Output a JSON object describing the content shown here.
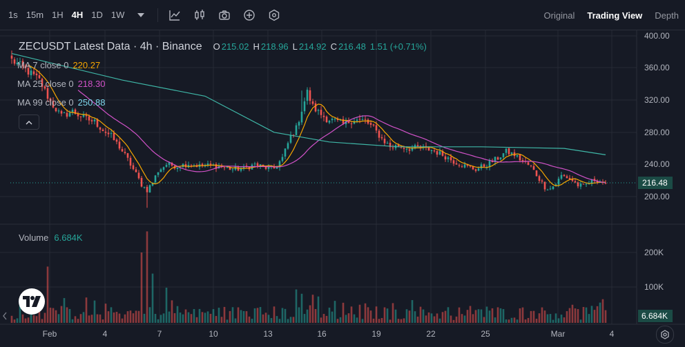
{
  "toolbar": {
    "timeframes": [
      {
        "label": "1s",
        "active": false
      },
      {
        "label": "15m",
        "active": false
      },
      {
        "label": "1H",
        "active": false
      },
      {
        "label": "4H",
        "active": true
      },
      {
        "label": "1D",
        "active": false
      },
      {
        "label": "1W",
        "active": false
      }
    ],
    "icons": [
      "chevron-down-icon",
      "indicator-chart-icon",
      "candle-style-icon",
      "camera-icon",
      "plus-circle-icon",
      "settings-hex-icon"
    ],
    "view_modes": [
      {
        "label": "Original",
        "active": false
      },
      {
        "label": "Trading View",
        "active": true
      },
      {
        "label": "Depth",
        "active": false
      }
    ]
  },
  "legend": {
    "title": "ZECUSDT Latest Data · 4h · Binance",
    "open_key": "O",
    "open": "215.02",
    "high_key": "H",
    "high": "218.96",
    "low_key": "L",
    "low": "214.92",
    "close_key": "C",
    "close": "216.48",
    "change": "1.51 (+0.71%)",
    "ma7_label": "MA 7 close 0",
    "ma7_value": "220.27",
    "ma25_label": "MA 25 close 0",
    "ma25_value": "218.30",
    "ma99_label": "MA 99 close 0",
    "ma99_value": "250.88"
  },
  "volume": {
    "label": "Volume",
    "value": "6.684K"
  },
  "price_axis": {
    "ticks": [
      "400.00",
      "360.00",
      "320.00",
      "280.00",
      "240.00",
      "200.00"
    ],
    "current": "216.48"
  },
  "volume_axis": {
    "ticks": [
      "200K",
      "100K"
    ],
    "current": "6.684K"
  },
  "time_axis": [
    "Feb",
    "4",
    "7",
    "10",
    "13",
    "16",
    "19",
    "22",
    "25",
    "Mar",
    "4"
  ],
  "colors": {
    "up": "#26a69a",
    "down": "#ef5350",
    "ma7": "#f7a600",
    "ma25": "#d152c8",
    "ma99": "#3fb8a8",
    "bg": "#161a25",
    "grid": "#262a35"
  },
  "chart_data": {
    "type": "candlestick",
    "symbol": "ZECUSDT",
    "interval": "4h",
    "ylim": [
      170,
      400
    ],
    "volume_max": 260000,
    "anchors": [
      [
        0,
        370
      ],
      [
        5,
        358
      ],
      [
        10,
        345
      ],
      [
        14,
        318
      ],
      [
        18,
        300
      ],
      [
        22,
        306
      ],
      [
        26,
        298
      ],
      [
        30,
        293
      ],
      [
        33,
        283
      ],
      [
        36,
        275
      ],
      [
        39,
        262
      ],
      [
        42,
        246
      ],
      [
        45,
        228
      ],
      [
        47,
        215
      ],
      [
        49,
        208
      ],
      [
        51,
        218
      ],
      [
        53,
        232
      ],
      [
        56,
        240
      ],
      [
        60,
        238
      ],
      [
        64,
        241
      ],
      [
        68,
        238
      ],
      [
        72,
        239
      ],
      [
        76,
        237
      ],
      [
        80,
        234
      ],
      [
        84,
        235
      ],
      [
        88,
        240
      ],
      [
        92,
        236
      ],
      [
        95,
        235
      ],
      [
        98,
        248
      ],
      [
        101,
        275
      ],
      [
        103,
        285
      ],
      [
        105,
        308
      ],
      [
        107,
        330
      ],
      [
        109,
        312
      ],
      [
        111,
        305
      ],
      [
        114,
        297
      ],
      [
        117,
        294
      ],
      [
        120,
        290
      ],
      [
        124,
        296
      ],
      [
        128,
        294
      ],
      [
        131,
        285
      ],
      [
        134,
        272
      ],
      [
        137,
        262
      ],
      [
        140,
        263
      ],
      [
        144,
        260
      ],
      [
        148,
        261
      ],
      [
        152,
        258
      ],
      [
        156,
        252
      ],
      [
        160,
        244
      ],
      [
        164,
        238
      ],
      [
        168,
        234
      ],
      [
        172,
        240
      ],
      [
        176,
        248
      ],
      [
        179,
        256
      ],
      [
        182,
        252
      ],
      [
        185,
        244
      ],
      [
        188,
        237
      ],
      [
        191,
        222
      ],
      [
        193,
        212
      ],
      [
        195,
        210
      ],
      [
        197,
        216
      ],
      [
        199,
        226
      ],
      [
        201,
        224
      ],
      [
        203,
        220
      ],
      [
        205,
        214
      ],
      [
        207,
        213
      ],
      [
        209,
        217
      ],
      [
        211,
        221
      ],
      [
        213,
        219
      ],
      [
        215,
        216.48
      ]
    ],
    "ma99_points": [
      [
        0,
        378
      ],
      [
        40,
        345
      ],
      [
        70,
        325
      ],
      [
        95,
        280
      ],
      [
        115,
        268
      ],
      [
        140,
        262
      ],
      [
        170,
        262
      ],
      [
        200,
        260
      ],
      [
        215,
        252
      ]
    ],
    "volume_spikes": [
      [
        13,
        160000
      ],
      [
        47,
        200000
      ],
      [
        49,
        260000
      ],
      [
        51,
        140000
      ],
      [
        56,
        100000
      ],
      [
        103,
        95000
      ],
      [
        109,
        80000
      ],
      [
        111,
        75000
      ]
    ]
  }
}
